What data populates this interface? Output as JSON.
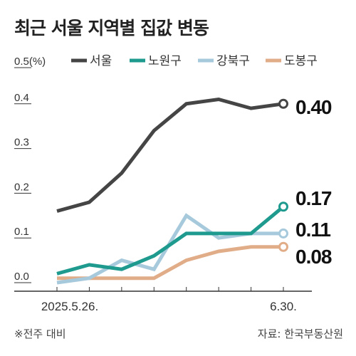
{
  "chart_data": {
    "type": "line",
    "title": "최근 서울 지역별 집값 변동",
    "y_unit_label": "0.5(%)",
    "ylim": [
      0,
      0.5
    ],
    "y_ticks": [
      "0.0",
      "0.1",
      "0.2",
      "0.3",
      "0.4"
    ],
    "x_tick_labels": [
      "2025.5.26.",
      "6.30."
    ],
    "categories": [
      "2025.5.26.",
      "",
      "",
      "",
      "",
      "",
      "",
      "6.30."
    ],
    "series": [
      {
        "name": "서울",
        "color": "#454545",
        "values": [
          0.16,
          0.18,
          0.245,
          0.34,
          0.4,
          0.41,
          0.39,
          0.4
        ],
        "end_label": "0.40"
      },
      {
        "name": "노원구",
        "color": "#1f9a8e",
        "values": [
          0.02,
          0.04,
          0.03,
          0.06,
          0.11,
          0.11,
          0.11,
          0.17
        ],
        "end_label": "0.17"
      },
      {
        "name": "강북구",
        "color": "#a7c9dc",
        "values": [
          0.0,
          0.01,
          0.05,
          0.03,
          0.15,
          0.1,
          0.11,
          0.11
        ],
        "end_label": "0.11"
      },
      {
        "name": "도봉구",
        "color": "#e1ad88",
        "values": [
          0.01,
          0.01,
          0.01,
          0.01,
          0.05,
          0.07,
          0.08,
          0.08
        ],
        "end_label": "0.08"
      }
    ],
    "grid": false,
    "legend_position": "top"
  },
  "footnote": "※전주 대비",
  "source": "자료: 한국부동산원"
}
